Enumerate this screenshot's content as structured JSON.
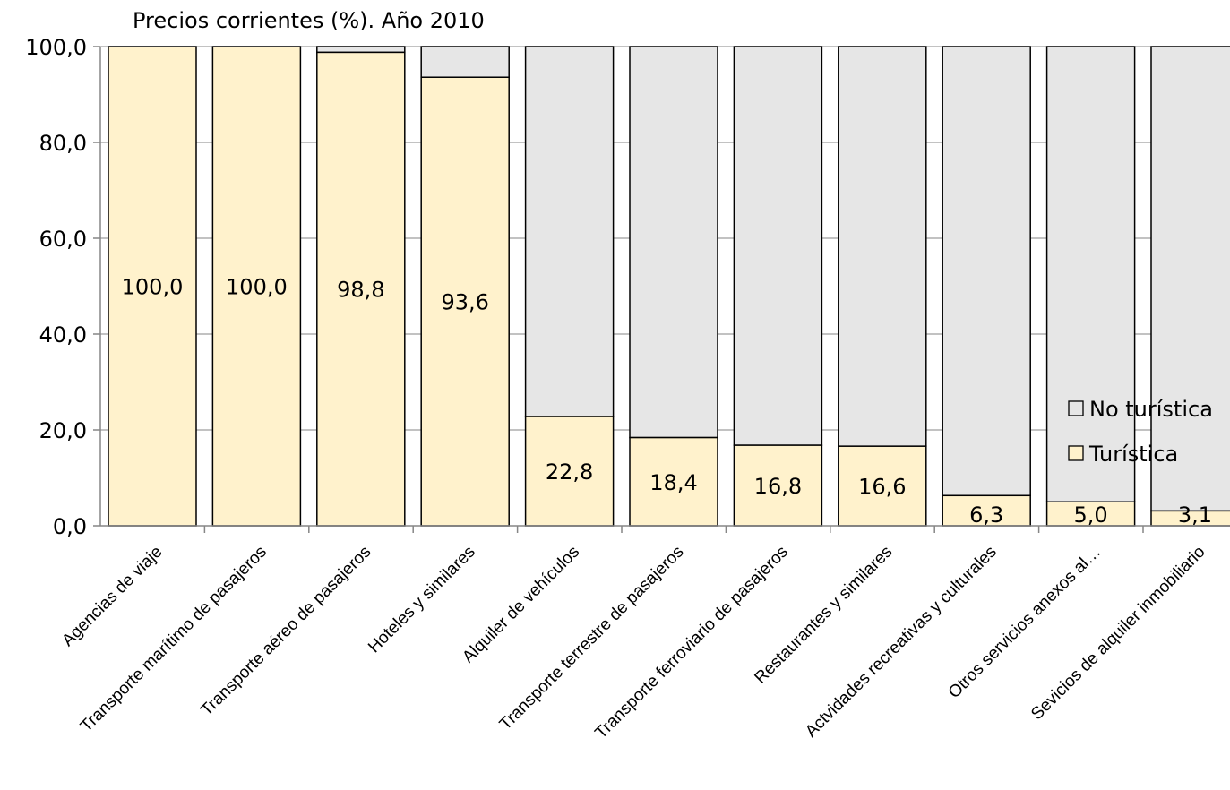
{
  "chart_data": {
    "type": "bar",
    "stacked": true,
    "title": "Precios corrientes (%). Año 2010",
    "xlabel": "",
    "ylabel": "",
    "ylim": [
      0,
      100
    ],
    "yticks": [
      "0,0",
      "20,0",
      "40,0",
      "60,0",
      "80,0",
      "100,0"
    ],
    "ytick_values": [
      0,
      20,
      40,
      60,
      80,
      100
    ],
    "grid": true,
    "legend_position": "right",
    "categories": [
      "Agencias de viaje",
      "Transporte marítimo de pasajeros",
      "Transporte aéreo de pasajeros",
      "Hoteles y similares",
      "Alquiler de vehículos",
      "Transporte terrestre de pasajeros",
      "Transporte ferroviario de pasajeros",
      "Restaurantes y similares",
      "Actvidades recreativas y culturales",
      "Otros servicios anexos al…",
      "Sevicios de alquiler inmobiliario"
    ],
    "series": [
      {
        "name": "Turística",
        "color": "#FFF2CC",
        "values": [
          100.0,
          100.0,
          98.8,
          93.6,
          22.8,
          18.4,
          16.8,
          16.6,
          6.3,
          5.0,
          3.1
        ],
        "labels": [
          "100,0",
          "100,0",
          "98,8",
          "93,6",
          "22,8",
          "18,4",
          "16,8",
          "16,6",
          "6,3",
          "5,0",
          "3,1"
        ]
      },
      {
        "name": "No turística",
        "color": "#E6E6E6",
        "values": [
          0.0,
          0.0,
          1.2,
          6.4,
          77.2,
          81.6,
          83.2,
          83.4,
          93.7,
          95.0,
          96.9
        ]
      }
    ]
  }
}
